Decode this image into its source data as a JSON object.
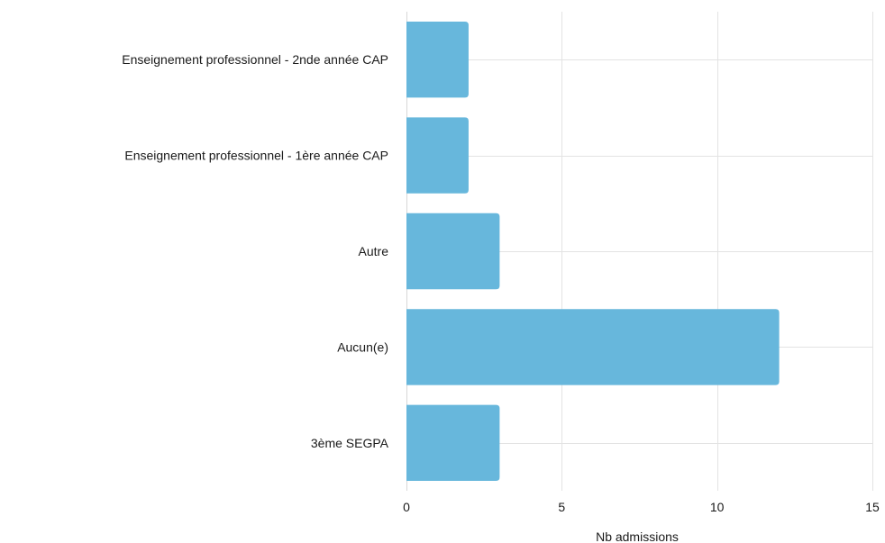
{
  "chart_data": {
    "type": "bar",
    "orientation": "horizontal",
    "categories": [
      "Enseignement professionnel - 2nde année CAP",
      "Enseignement professionnel - 1ère année CAP",
      "Autre",
      "Aucun(e)",
      "3ème SEGPA"
    ],
    "values": [
      2,
      2,
      3,
      12,
      3
    ],
    "xlabel": "Nb admissions",
    "ylabel": "",
    "xlim": [
      0,
      15
    ],
    "xticks": [
      0,
      5,
      10,
      15
    ],
    "grid": true,
    "legend": "none",
    "bar_color": "#67b7dc"
  }
}
